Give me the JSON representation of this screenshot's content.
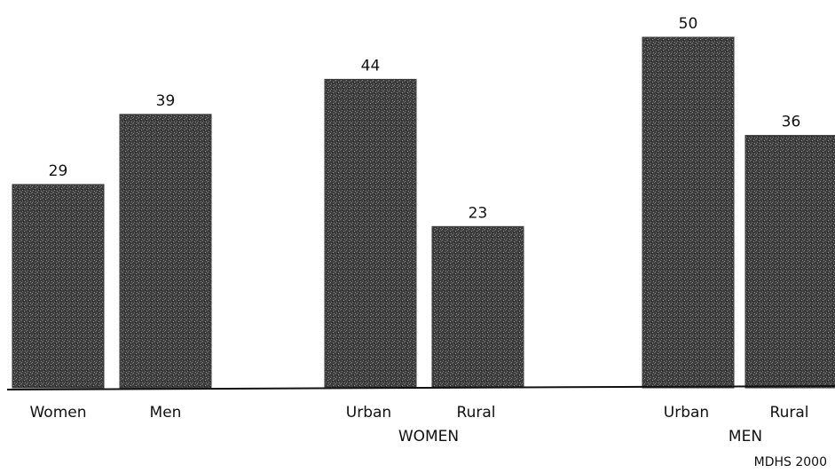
{
  "chart_data": {
    "type": "bar",
    "categories": [
      "Women",
      "Men",
      "Urban",
      "Rural",
      "Urban",
      "Rural"
    ],
    "values": [
      29,
      39,
      44,
      23,
      50,
      36
    ],
    "groups": [
      {
        "label": "",
        "categories": [
          "Women",
          "Men"
        ]
      },
      {
        "label": "WOMEN",
        "categories": [
          "Urban",
          "Rural"
        ]
      },
      {
        "label": "MEN",
        "categories": [
          "Urban",
          "Rural"
        ]
      }
    ],
    "ylim": [
      0,
      50
    ],
    "grid": false,
    "data_labels": true,
    "source": "MDHS 2000",
    "bar_color": "#3a3a3a"
  }
}
